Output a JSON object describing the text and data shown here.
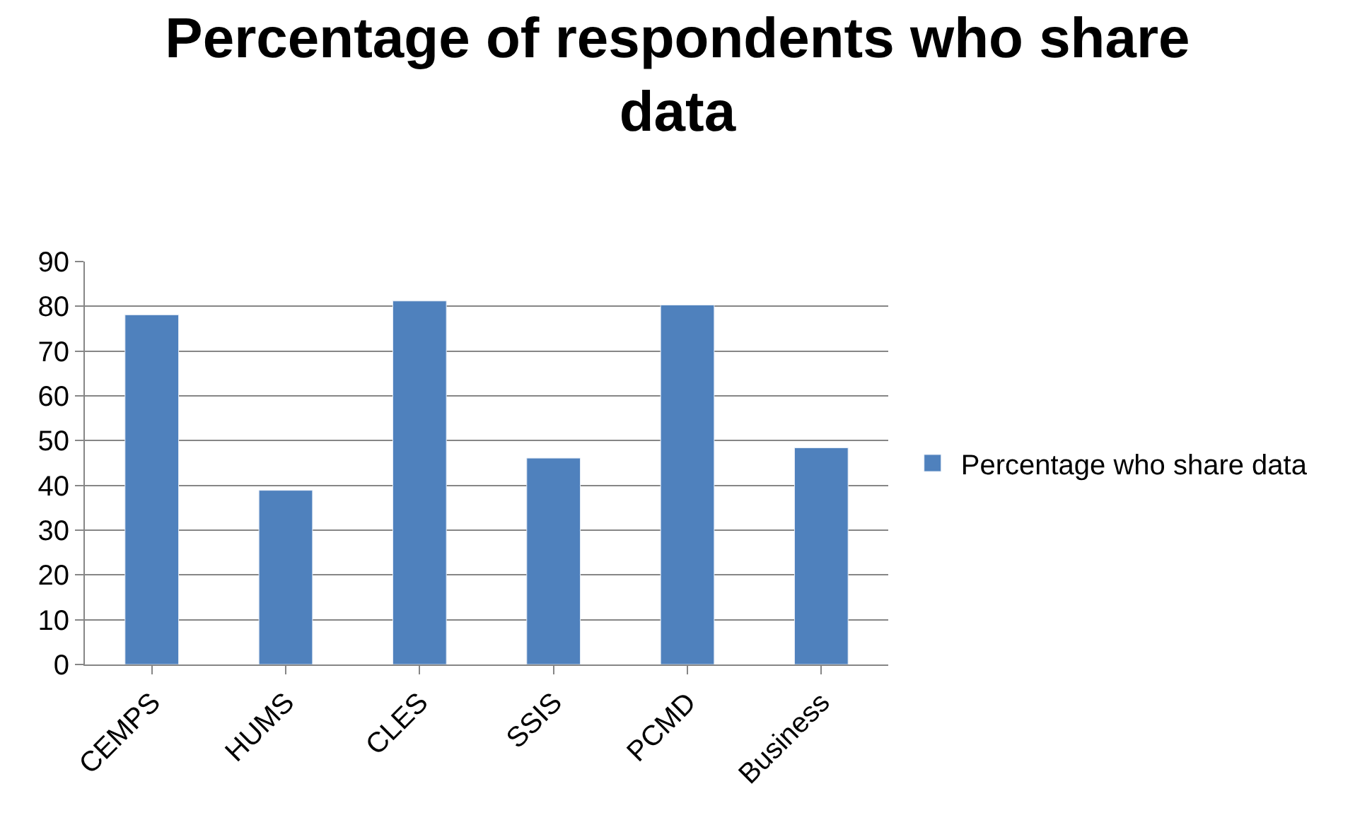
{
  "chart_data": {
    "type": "bar",
    "title": "Percentage of respondents who share data",
    "categories": [
      "CEMPS",
      "HUMS",
      "CLES",
      "SSIS",
      "PCMD",
      "Business"
    ],
    "series": [
      {
        "name": "Percentage who share data",
        "color": "#4f81bd",
        "values": [
          78.1,
          38.9,
          81.2,
          46.1,
          80.3,
          48.4
        ]
      }
    ],
    "ylim": [
      0,
      90
    ],
    "yticks": [
      0,
      10,
      20,
      30,
      40,
      50,
      60,
      70,
      80,
      90
    ],
    "grid": "y",
    "legend": "right"
  }
}
